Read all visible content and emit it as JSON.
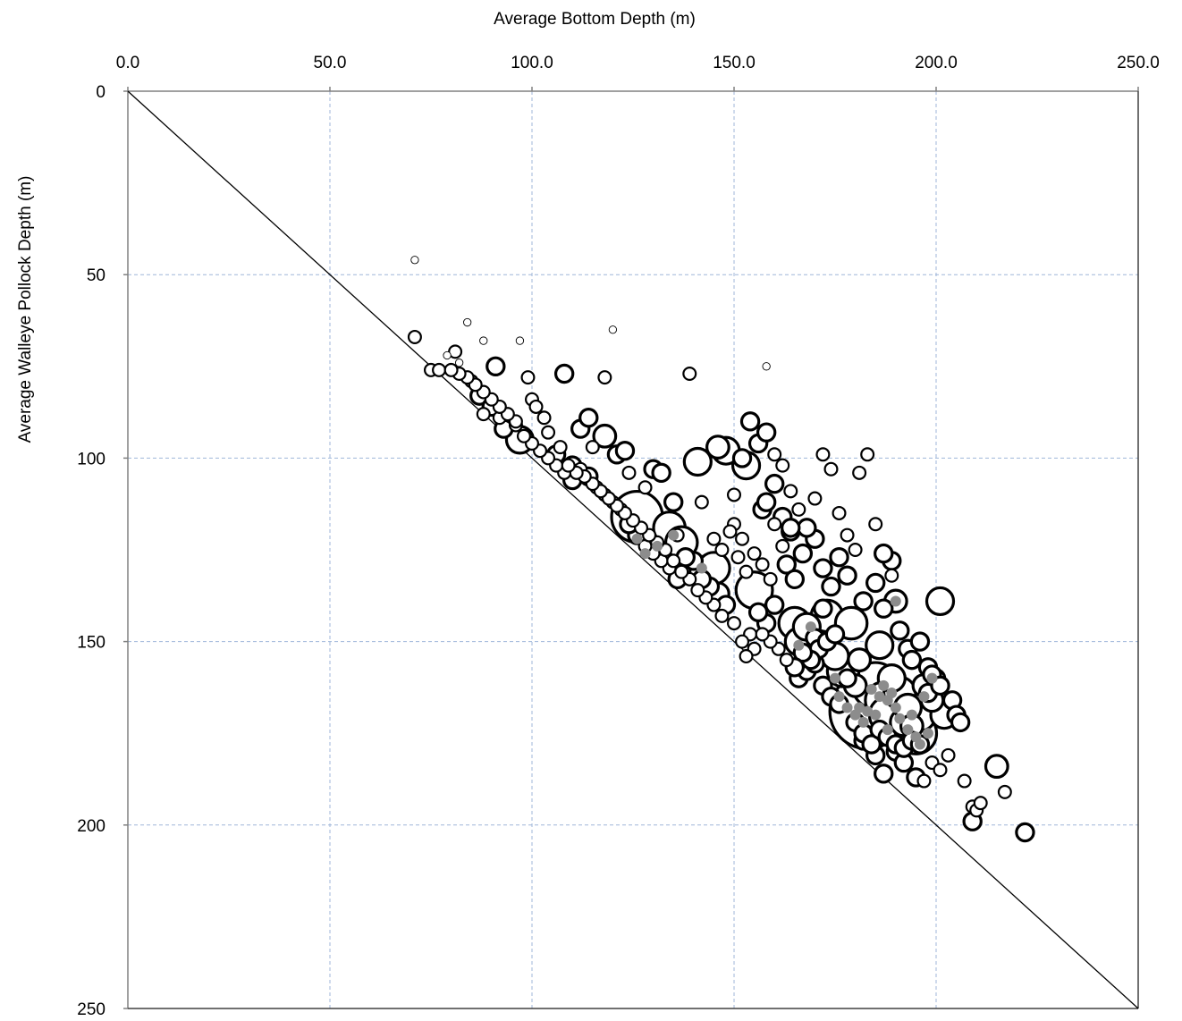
{
  "chart_data": {
    "type": "scatter",
    "variant": "bubble",
    "xlabel": "Average Bottom Depth (m)",
    "ylabel": "Average Walleye Pollock Depth (m)",
    "x_axis_position": "top",
    "y_axis_reversed": true,
    "xlim": [
      0,
      250
    ],
    "ylim": [
      0,
      250
    ],
    "x_ticks": [
      "0.0",
      "50.0",
      "100.0",
      "150.0",
      "200.0",
      "250.0"
    ],
    "y_ticks": [
      "0",
      "50",
      "100",
      "150",
      "200",
      "250"
    ],
    "grid": true,
    "reference_line": {
      "from": [
        0,
        0
      ],
      "to": [
        250,
        250
      ]
    },
    "colors": {
      "outline": "#000000",
      "fill": "#ffffff",
      "inner": "#8c8c8c",
      "grid": "#9fb6d9"
    },
    "points": [
      [
        71,
        46,
        1
      ],
      [
        71,
        67,
        2
      ],
      [
        84,
        63,
        1
      ],
      [
        88,
        68,
        1
      ],
      [
        91,
        75,
        3
      ],
      [
        97,
        68,
        1
      ],
      [
        75,
        76,
        2
      ],
      [
        77,
        76,
        2
      ],
      [
        79,
        72,
        1
      ],
      [
        81,
        71,
        2
      ],
      [
        82,
        74,
        1
      ],
      [
        85,
        79,
        2
      ],
      [
        87,
        83,
        3
      ],
      [
        88,
        88,
        2
      ],
      [
        90,
        86,
        3
      ],
      [
        92,
        89,
        2
      ],
      [
        93,
        92,
        3
      ],
      [
        96,
        91,
        2
      ],
      [
        97,
        95,
        5
      ],
      [
        99,
        78,
        2
      ],
      [
        100,
        84,
        2
      ],
      [
        101,
        86,
        2
      ],
      [
        103,
        89,
        2
      ],
      [
        104,
        93,
        2
      ],
      [
        106,
        99,
        3
      ],
      [
        107,
        97,
        2
      ],
      [
        108,
        77,
        3
      ],
      [
        110,
        102,
        3
      ],
      [
        112,
        92,
        3
      ],
      [
        114,
        89,
        3
      ],
      [
        115,
        97,
        2
      ],
      [
        118,
        78,
        2
      ],
      [
        118,
        94,
        4
      ],
      [
        120,
        65,
        1
      ],
      [
        121,
        99,
        3
      ],
      [
        123,
        98,
        3
      ],
      [
        124,
        104,
        2
      ],
      [
        126,
        116,
        10
      ],
      [
        128,
        108,
        2
      ],
      [
        130,
        103,
        3
      ],
      [
        132,
        104,
        3
      ],
      [
        134,
        119,
        6
      ],
      [
        135,
        112,
        3
      ],
      [
        136,
        121,
        2
      ],
      [
        137,
        123,
        6
      ],
      [
        139,
        77,
        2
      ],
      [
        141,
        101,
        5
      ],
      [
        142,
        112,
        2
      ],
      [
        143,
        131,
        6
      ],
      [
        145,
        130,
        6
      ],
      [
        146,
        97,
        4
      ],
      [
        148,
        98,
        5
      ],
      [
        150,
        110,
        2
      ],
      [
        152,
        100,
        3
      ],
      [
        153,
        102,
        5
      ],
      [
        155,
        136,
        7
      ],
      [
        157,
        114,
        3
      ],
      [
        158,
        75,
        1
      ],
      [
        160,
        118,
        2
      ],
      [
        162,
        124,
        2
      ],
      [
        164,
        120,
        3
      ],
      [
        165,
        145,
        6
      ],
      [
        166,
        150,
        5
      ],
      [
        168,
        146,
        5
      ],
      [
        170,
        149,
        3
      ],
      [
        172,
        141,
        3
      ],
      [
        173,
        143,
        6
      ],
      [
        175,
        154,
        5
      ],
      [
        177,
        158,
        6
      ],
      [
        179,
        145,
        6
      ],
      [
        180,
        162,
        4
      ],
      [
        181,
        155,
        4
      ],
      [
        183,
        169,
        15
      ],
      [
        185,
        162,
        9
      ],
      [
        186,
        151,
        5
      ],
      [
        187,
        166,
        7
      ],
      [
        188,
        170,
        7
      ],
      [
        189,
        160,
        5
      ],
      [
        190,
        139,
        4
      ],
      [
        191,
        164,
        6
      ],
      [
        192,
        172,
        5
      ],
      [
        193,
        168,
        5
      ],
      [
        194,
        173,
        4
      ],
      [
        195,
        175,
        8
      ],
      [
        196,
        170,
        6
      ],
      [
        197,
        162,
        4
      ],
      [
        198,
        164,
        3
      ],
      [
        199,
        166,
        4
      ],
      [
        200,
        160,
        3
      ],
      [
        201,
        139,
        5
      ],
      [
        202,
        170,
        5
      ],
      [
        204,
        166,
        3
      ],
      [
        205,
        170,
        3
      ],
      [
        206,
        172,
        3
      ],
      [
        207,
        188,
        2
      ],
      [
        209,
        195,
        2
      ],
      [
        210,
        196,
        2
      ],
      [
        211,
        194,
        2
      ],
      [
        215,
        184,
        4
      ],
      [
        217,
        191,
        2
      ],
      [
        222,
        202,
        3
      ],
      [
        209,
        199,
        3
      ],
      [
        163,
        129,
        3
      ],
      [
        165,
        133,
        3
      ],
      [
        167,
        126,
        3
      ],
      [
        170,
        122,
        3
      ],
      [
        172,
        130,
        3
      ],
      [
        174,
        135,
        3
      ],
      [
        176,
        127,
        3
      ],
      [
        178,
        132,
        3
      ],
      [
        180,
        125,
        2
      ],
      [
        182,
        139,
        3
      ],
      [
        185,
        134,
        3
      ],
      [
        187,
        141,
        3
      ],
      [
        189,
        128,
        3
      ],
      [
        191,
        147,
        3
      ],
      [
        193,
        152,
        3
      ],
      [
        194,
        155,
        3
      ],
      [
        196,
        150,
        3
      ],
      [
        198,
        157,
        3
      ],
      [
        199,
        159,
        3
      ],
      [
        201,
        162,
        3
      ],
      [
        182,
        177,
        3
      ],
      [
        185,
        181,
        3
      ],
      [
        187,
        186,
        3
      ],
      [
        190,
        180,
        3
      ],
      [
        192,
        183,
        3
      ],
      [
        195,
        187,
        3
      ],
      [
        197,
        188,
        2
      ],
      [
        199,
        183,
        2
      ],
      [
        201,
        185,
        2
      ],
      [
        203,
        181,
        2
      ],
      [
        160,
        140,
        3
      ],
      [
        158,
        145,
        3
      ],
      [
        156,
        142,
        3
      ],
      [
        154,
        148,
        2
      ],
      [
        152,
        150,
        2
      ],
      [
        150,
        145,
        2
      ],
      [
        148,
        140,
        3
      ],
      [
        146,
        137,
        4
      ],
      [
        144,
        135,
        3
      ],
      [
        142,
        133,
        3
      ],
      [
        140,
        128,
        3
      ],
      [
        138,
        127,
        3
      ],
      [
        136,
        133,
        3
      ],
      [
        134,
        130,
        2
      ],
      [
        132,
        128,
        2
      ],
      [
        130,
        126,
        2
      ],
      [
        128,
        124,
        2
      ],
      [
        126,
        121,
        3
      ],
      [
        124,
        118,
        3
      ],
      [
        122,
        114,
        2
      ],
      [
        120,
        112,
        2
      ],
      [
        118,
        110,
        2
      ],
      [
        116,
        108,
        2
      ],
      [
        114,
        105,
        3
      ],
      [
        112,
        103,
        2
      ],
      [
        110,
        106,
        3
      ],
      [
        108,
        104,
        2
      ],
      [
        106,
        102,
        2
      ],
      [
        104,
        100,
        2
      ],
      [
        102,
        98,
        2
      ],
      [
        100,
        96,
        2
      ],
      [
        98,
        94,
        2
      ],
      [
        96,
        90,
        2
      ],
      [
        94,
        88,
        2
      ],
      [
        92,
        86,
        2
      ],
      [
        90,
        84,
        2
      ],
      [
        88,
        82,
        2
      ],
      [
        86,
        80,
        2
      ],
      [
        84,
        78,
        2
      ],
      [
        82,
        77,
        2
      ],
      [
        80,
        76,
        2
      ],
      [
        166,
        160,
        3
      ],
      [
        168,
        158,
        3
      ],
      [
        170,
        156,
        3
      ],
      [
        172,
        162,
        3
      ],
      [
        174,
        165,
        3
      ],
      [
        176,
        167,
        3
      ],
      [
        178,
        160,
        3
      ],
      [
        180,
        172,
        3
      ],
      [
        182,
        175,
        3
      ],
      [
        184,
        178,
        3
      ],
      [
        186,
        174,
        3
      ],
      [
        188,
        176,
        3
      ],
      [
        190,
        178,
        3
      ],
      [
        192,
        179,
        3
      ],
      [
        194,
        177,
        3
      ],
      [
        196,
        178,
        3
      ],
      [
        171,
        152,
        3
      ],
      [
        173,
        150,
        3
      ],
      [
        175,
        148,
        3
      ],
      [
        169,
        155,
        3
      ],
      [
        167,
        153,
        3
      ],
      [
        165,
        157,
        3
      ],
      [
        163,
        155,
        2
      ],
      [
        161,
        152,
        2
      ],
      [
        159,
        150,
        2
      ],
      [
        157,
        148,
        2
      ],
      [
        155,
        152,
        2
      ],
      [
        153,
        154,
        2
      ],
      [
        147,
        143,
        2
      ],
      [
        145,
        140,
        2
      ],
      [
        143,
        138,
        2
      ],
      [
        141,
        136,
        2
      ],
      [
        139,
        133,
        2
      ],
      [
        137,
        131,
        2
      ],
      [
        135,
        128,
        2
      ],
      [
        133,
        125,
        2
      ],
      [
        131,
        123,
        2
      ],
      [
        129,
        121,
        2
      ],
      [
        127,
        119,
        2
      ],
      [
        125,
        117,
        2
      ],
      [
        123,
        115,
        2
      ],
      [
        121,
        113,
        2
      ],
      [
        119,
        111,
        2
      ],
      [
        117,
        109,
        2
      ],
      [
        115,
        107,
        2
      ],
      [
        113,
        105,
        2
      ],
      [
        111,
        104,
        2
      ],
      [
        109,
        102,
        2
      ],
      [
        160,
        107,
        3
      ],
      [
        158,
        112,
        3
      ],
      [
        162,
        116,
        3
      ],
      [
        164,
        109,
        2
      ],
      [
        166,
        114,
        2
      ],
      [
        168,
        119,
        3
      ],
      [
        170,
        111,
        2
      ],
      [
        172,
        99,
        2
      ],
      [
        174,
        103,
        2
      ],
      [
        176,
        115,
        2
      ],
      [
        178,
        121,
        2
      ],
      [
        181,
        104,
        2
      ],
      [
        183,
        99,
        2
      ],
      [
        185,
        118,
        2
      ],
      [
        187,
        126,
        3
      ],
      [
        189,
        132,
        2
      ],
      [
        150,
        118,
        2
      ],
      [
        152,
        122,
        2
      ],
      [
        154,
        90,
        3
      ],
      [
        156,
        96,
        3
      ],
      [
        158,
        93,
        3
      ],
      [
        160,
        99,
        2
      ],
      [
        162,
        102,
        2
      ],
      [
        164,
        119,
        3
      ],
      [
        145,
        122,
        2
      ],
      [
        147,
        125,
        2
      ],
      [
        149,
        120,
        2
      ],
      [
        151,
        127,
        2
      ],
      [
        153,
        131,
        2
      ],
      [
        155,
        126,
        2
      ],
      [
        157,
        129,
        2
      ],
      [
        159,
        133,
        2
      ]
    ],
    "grey_inner": [
      [
        183,
        169
      ],
      [
        186,
        165
      ],
      [
        188,
        166
      ],
      [
        185,
        170
      ],
      [
        190,
        168
      ],
      [
        182,
        172
      ],
      [
        193,
        174
      ],
      [
        195,
        176
      ],
      [
        197,
        165
      ],
      [
        187,
        162
      ],
      [
        189,
        164
      ],
      [
        191,
        171
      ],
      [
        194,
        170
      ],
      [
        181,
        168
      ],
      [
        184,
        163
      ],
      [
        198,
        175
      ],
      [
        196,
        178
      ],
      [
        188,
        174
      ],
      [
        175,
        160
      ],
      [
        166,
        151
      ],
      [
        169,
        146
      ],
      [
        176,
        165
      ],
      [
        178,
        168
      ],
      [
        180,
        170
      ],
      [
        199,
        160
      ],
      [
        190,
        139
      ],
      [
        135,
        121
      ],
      [
        126,
        122
      ],
      [
        142,
        130
      ],
      [
        128,
        126
      ],
      [
        131,
        124
      ]
    ]
  }
}
